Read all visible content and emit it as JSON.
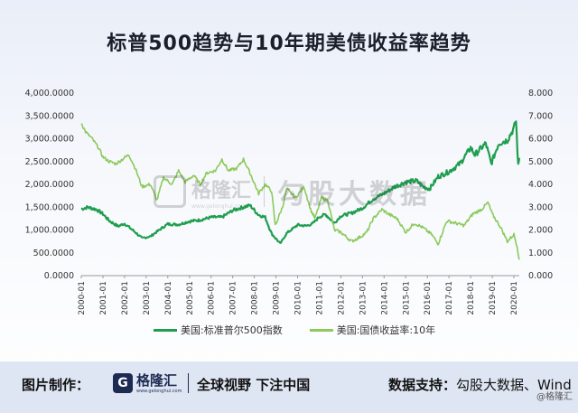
{
  "title": "标普500趋势与10年期美债收益率趋势",
  "chart_data": {
    "type": "line",
    "x": [
      "2000-01",
      "2001-01",
      "2002-01",
      "2003-01",
      "2004-01",
      "2005-01",
      "2006-01",
      "2007-01",
      "2008-01",
      "2009-01",
      "2010-01",
      "2011-01",
      "2012-01",
      "2013-01",
      "2014-01",
      "2015-01",
      "2016-01",
      "2017-01",
      "2018-01",
      "2019-01",
      "2020-01"
    ],
    "left_axis": {
      "ticks": [
        "0.0000",
        "500.0000",
        "1,000.0000",
        "1,500.0000",
        "2,000.0000",
        "2,500.0000",
        "3,000.0000",
        "3,500.0000",
        "4,000.0000"
      ],
      "range": [
        0,
        4000
      ]
    },
    "right_axis": {
      "ticks": [
        "0.000",
        "1.000",
        "2.000",
        "3.000",
        "4.000",
        "5.000",
        "6.000",
        "7.000",
        "8.000"
      ],
      "range": [
        0,
        8
      ]
    },
    "series": [
      {
        "name": "美国:标准普尔500指数",
        "axis": "left",
        "color": "#1f9e4f",
        "points": [
          [
            2000.0,
            1460
          ],
          [
            2000.3,
            1500
          ],
          [
            2000.7,
            1450
          ],
          [
            2001.0,
            1350
          ],
          [
            2001.3,
            1200
          ],
          [
            2001.7,
            1080
          ],
          [
            2002.0,
            1140
          ],
          [
            2002.5,
            950
          ],
          [
            2002.8,
            820
          ],
          [
            2003.2,
            860
          ],
          [
            2003.6,
            1000
          ],
          [
            2004.0,
            1130
          ],
          [
            2004.5,
            1120
          ],
          [
            2005.0,
            1190
          ],
          [
            2005.5,
            1220
          ],
          [
            2006.0,
            1280
          ],
          [
            2006.5,
            1280
          ],
          [
            2007.0,
            1430
          ],
          [
            2007.5,
            1500
          ],
          [
            2007.8,
            1540
          ],
          [
            2008.2,
            1330
          ],
          [
            2008.5,
            1280
          ],
          [
            2008.8,
            920
          ],
          [
            2009.2,
            700
          ],
          [
            2009.5,
            930
          ],
          [
            2010.0,
            1110
          ],
          [
            2010.4,
            1090
          ],
          [
            2010.7,
            1140
          ],
          [
            2011.0,
            1290
          ],
          [
            2011.3,
            1340
          ],
          [
            2011.7,
            1150
          ],
          [
            2012.0,
            1310
          ],
          [
            2012.5,
            1370
          ],
          [
            2013.0,
            1480
          ],
          [
            2013.5,
            1680
          ],
          [
            2014.0,
            1800
          ],
          [
            2014.5,
            1950
          ],
          [
            2015.0,
            2050
          ],
          [
            2015.5,
            2080
          ],
          [
            2015.8,
            1950
          ],
          [
            2016.1,
            1900
          ],
          [
            2016.5,
            2170
          ],
          [
            2017.0,
            2280
          ],
          [
            2017.5,
            2450
          ],
          [
            2018.0,
            2800
          ],
          [
            2018.2,
            2650
          ],
          [
            2018.7,
            2900
          ],
          [
            2018.95,
            2450
          ],
          [
            2019.3,
            2900
          ],
          [
            2019.7,
            2970
          ],
          [
            2020.0,
            3230
          ],
          [
            2020.1,
            3380
          ],
          [
            2020.2,
            2400
          ],
          [
            2020.25,
            2580
          ]
        ]
      },
      {
        "name": "美国:国债收益率:10年",
        "axis": "right",
        "color": "#8cca5a",
        "points": [
          [
            2000.0,
            6.7
          ],
          [
            2000.2,
            6.3
          ],
          [
            2000.5,
            6.0
          ],
          [
            2000.8,
            5.6
          ],
          [
            2001.0,
            5.2
          ],
          [
            2001.3,
            5.0
          ],
          [
            2001.6,
            4.9
          ],
          [
            2001.9,
            5.1
          ],
          [
            2002.2,
            5.3
          ],
          [
            2002.5,
            4.7
          ],
          [
            2002.8,
            3.9
          ],
          [
            2003.2,
            4.0
          ],
          [
            2003.5,
            3.3
          ],
          [
            2003.8,
            4.3
          ],
          [
            2004.2,
            4.0
          ],
          [
            2004.5,
            4.6
          ],
          [
            2004.8,
            4.1
          ],
          [
            2005.2,
            4.4
          ],
          [
            2005.5,
            4.0
          ],
          [
            2005.8,
            4.5
          ],
          [
            2006.2,
            4.6
          ],
          [
            2006.5,
            5.1
          ],
          [
            2006.8,
            4.6
          ],
          [
            2007.2,
            4.7
          ],
          [
            2007.5,
            5.1
          ],
          [
            2007.8,
            4.5
          ],
          [
            2008.2,
            3.6
          ],
          [
            2008.5,
            4.0
          ],
          [
            2008.8,
            3.7
          ],
          [
            2008.97,
            2.2
          ],
          [
            2009.3,
            3.0
          ],
          [
            2009.5,
            3.8
          ],
          [
            2009.9,
            3.4
          ],
          [
            2010.3,
            3.9
          ],
          [
            2010.6,
            2.9
          ],
          [
            2010.8,
            2.5
          ],
          [
            2011.1,
            3.4
          ],
          [
            2011.4,
            3.3
          ],
          [
            2011.7,
            2.0
          ],
          [
            2012.0,
            1.9
          ],
          [
            2012.5,
            1.5
          ],
          [
            2012.9,
            1.7
          ],
          [
            2013.2,
            1.9
          ],
          [
            2013.5,
            2.5
          ],
          [
            2013.9,
            2.9
          ],
          [
            2014.2,
            2.7
          ],
          [
            2014.6,
            2.5
          ],
          [
            2015.0,
            1.9
          ],
          [
            2015.4,
            2.3
          ],
          [
            2015.8,
            2.1
          ],
          [
            2016.2,
            1.8
          ],
          [
            2016.5,
            1.4
          ],
          [
            2016.9,
            2.4
          ],
          [
            2017.3,
            2.3
          ],
          [
            2017.7,
            2.2
          ],
          [
            2018.1,
            2.7
          ],
          [
            2018.5,
            2.9
          ],
          [
            2018.8,
            3.2
          ],
          [
            2019.0,
            2.7
          ],
          [
            2019.4,
            2.1
          ],
          [
            2019.7,
            1.5
          ],
          [
            2020.0,
            1.8
          ],
          [
            2020.15,
            1.3
          ],
          [
            2020.25,
            0.7
          ]
        ]
      }
    ],
    "legend_position": "bottom",
    "grid": false
  },
  "watermark": {
    "brand": "格隆汇",
    "brand_sub": "www.gelonghui.com",
    "product": "勾股大数据"
  },
  "footer": {
    "made_by_label": "图片制作：",
    "logo_char": "G",
    "logo_text": "格隆汇",
    "logo_sub": "www.gelonghui.com",
    "slogan": "全球视野 下注中国",
    "data_source_label": "数据支持：",
    "data_source_value": "勾股大数据、Wind",
    "credit": "@格隆汇"
  }
}
